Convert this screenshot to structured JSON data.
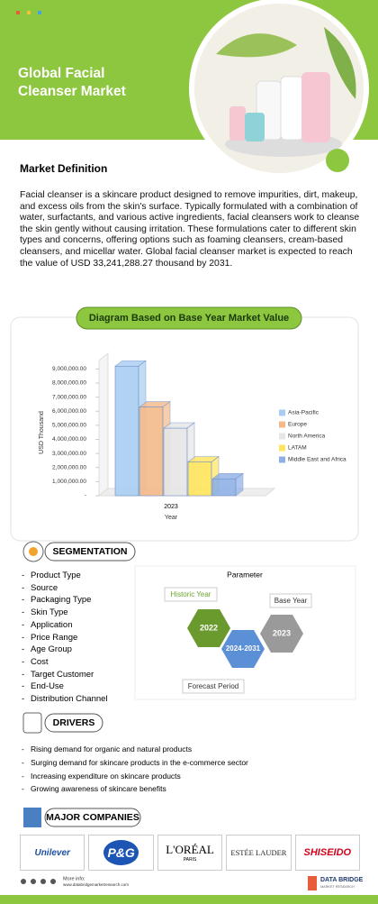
{
  "header": {
    "title_line1": "Global Facial",
    "title_line2": "Cleanser Market"
  },
  "definition": {
    "heading": "Market Definition",
    "text": "Facial cleanser is a skincare product designed to remove impurities, dirt, makeup, and excess oils from the skin's surface. Typically formulated with a combination of water, surfactants, and various active ingredients, facial cleansers work to cleanse the skin gently without causing irritation. These formulations cater to different skin types and concerns, offering options such as foaming cleansers, cream-based cleansers, and micellar water. Global facial cleanser market is expected to reach the value of USD 33,241,288.27 thousand by 2031."
  },
  "chart_data": {
    "type": "bar",
    "title": "Diagram Based on Base Year Market Value",
    "y_label": "USD Thousand",
    "x_label": "Year",
    "categories": [
      "2023"
    ],
    "series": [
      {
        "name": "Asia-Pacific",
        "color": "#a9cdf2",
        "values": [
          9200000
        ]
      },
      {
        "name": "Europe",
        "color": "#f5b98a",
        "values": [
          6300000
        ]
      },
      {
        "name": "North America",
        "color": "#e6e6e6",
        "values": [
          4800000
        ]
      },
      {
        "name": "LATAM",
        "color": "#ffe45c",
        "values": [
          2400000
        ]
      },
      {
        "name": "Middle East and Africa",
        "color": "#8fb0e6",
        "values": [
          1200000
        ]
      }
    ],
    "ylim": [
      0,
      9600000
    ],
    "yticks": [
      {
        "value": 0,
        "label": "-"
      },
      {
        "value": 1000000,
        "label": "1,000,000.00"
      },
      {
        "value": 2000000,
        "label": "2,000,000.00"
      },
      {
        "value": 3000000,
        "label": "3,000,000.00"
      },
      {
        "value": 4000000,
        "label": "4,000,000.00"
      },
      {
        "value": 5000000,
        "label": "5,000,000.00"
      },
      {
        "value": 6000000,
        "label": "6,000,000.00"
      },
      {
        "value": 7000000,
        "label": "7,000,000.00"
      },
      {
        "value": 8000000,
        "label": "8,000,000.00"
      },
      {
        "value": 9000000,
        "label": "9,000,000.00"
      }
    ],
    "legend": "right"
  },
  "segmentation": {
    "heading": "SEGMENTATION",
    "items": [
      "Product Type",
      "Source",
      "Packaging Type",
      "Skin Type",
      "Application",
      "Price Range",
      "Age Group",
      "Cost",
      "Target Customer",
      "End-Use",
      "Distribution Channel"
    ],
    "parameter": {
      "title": "Parameter",
      "historic_label": "Historic Year",
      "historic": "2022",
      "base_label": "Base Year",
      "base": "2023",
      "forecast_label": "Forecast Period",
      "forecast": "2024-2031"
    }
  },
  "drivers": {
    "heading": "DRIVERS",
    "items": [
      "Rising demand for organic and natural products",
      "Surging demand for skincare products in the e-commerce sector",
      "Increasing expenditure on skincare products",
      "Growing awareness of skincare benefits"
    ]
  },
  "companies": {
    "heading": "MAJOR COMPANIES",
    "items": [
      {
        "name": "Unilever"
      },
      {
        "name": "P&G"
      },
      {
        "name": "L'ORÉAL",
        "sub": "PARIS"
      },
      {
        "name": "ESTÉE LAUDER"
      },
      {
        "name": "SHISEIDO"
      }
    ]
  },
  "footer": {
    "more_info": "More info:",
    "url": "www.databridgemarketresearch.com",
    "brand": "DATA BRIDGE",
    "brand_sub": "MARKET RESEARCH"
  }
}
